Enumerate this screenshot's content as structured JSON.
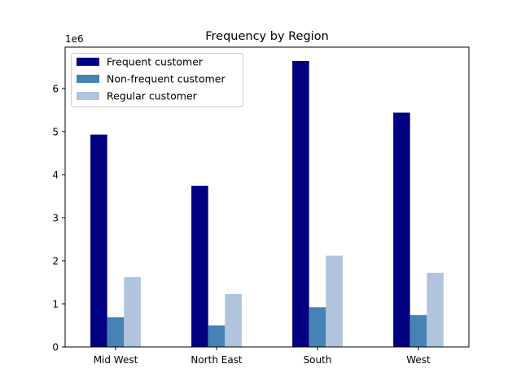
{
  "chart_data": {
    "type": "bar",
    "title": "Frequency by Region",
    "xlabel": "",
    "ylabel": "",
    "y_scale_label": "1e6",
    "categories": [
      "Mid West",
      "North East",
      "South",
      "West"
    ],
    "series": [
      {
        "name": "Frequent customer",
        "color": "#000080",
        "values": [
          4930000,
          3740000,
          6640000,
          5440000
        ]
      },
      {
        "name": "Non-frequent customer",
        "color": "#4682b4",
        "values": [
          690000,
          500000,
          920000,
          740000
        ]
      },
      {
        "name": "Regular customer",
        "color": "#b0c4de",
        "values": [
          1620000,
          1230000,
          2120000,
          1720000
        ]
      }
    ],
    "ylim": [
      0,
      6960000
    ],
    "yticks": [
      0,
      1,
      2,
      3,
      4,
      5,
      6
    ],
    "grid": false,
    "legend_position": "top-left"
  }
}
